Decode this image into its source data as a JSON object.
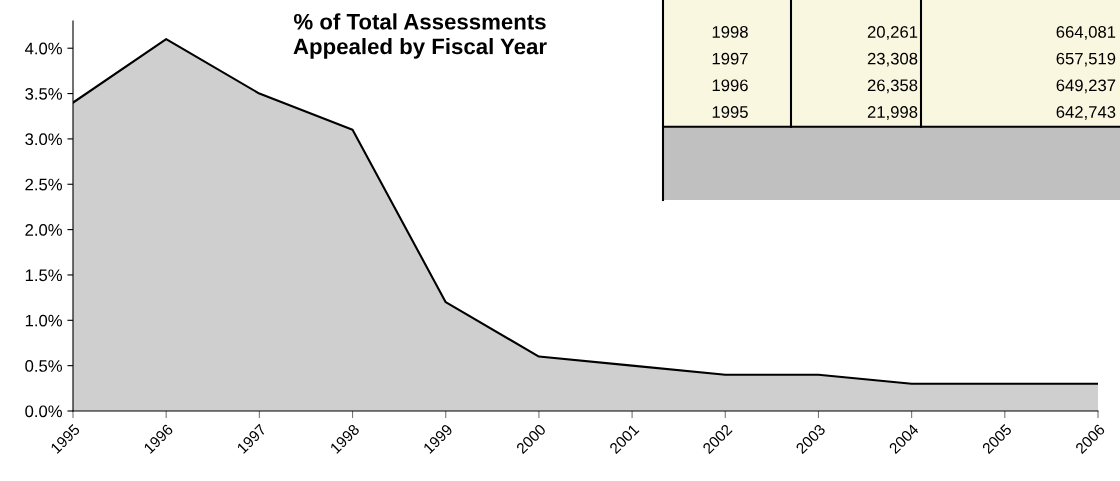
{
  "chart_data": {
    "type": "area",
    "title": "% of Total Assessments\nAppealed by Fiscal Year",
    "x": [
      1995,
      1996,
      1997,
      1998,
      1999,
      2000,
      2001,
      2002,
      2003,
      2004,
      2005,
      2006
    ],
    "series": [
      {
        "color": "#cfcfcf",
        "values": [
          3.4,
          4.1,
          3.5,
          3.1,
          1.2,
          0.6,
          0.5,
          0.4,
          0.4,
          0.3,
          0.3,
          0.3
        ]
      }
    ],
    "xlim": [
      1995,
      2006
    ],
    "xticks": [
      1995,
      1996,
      1997,
      1998,
      1999,
      2000,
      2001,
      2002,
      2003,
      2004,
      2005,
      2006
    ],
    "ylim": [
      0,
      4.3
    ],
    "yticks": [
      {
        "value": 0,
        "label": "0.0%"
      },
      {
        "value": 0.5,
        "label": "0.5%"
      },
      {
        "value": 1.0,
        "label": "1.0%"
      },
      {
        "value": 1.5,
        "label": "1.5%"
      },
      {
        "value": 2.0,
        "label": "2.0%"
      },
      {
        "value": 2.5,
        "label": "2.5%"
      },
      {
        "value": 3.0,
        "label": "3.0%"
      },
      {
        "value": 3.5,
        "label": "3.5%"
      },
      {
        "value": 4.0,
        "label": "4.0%"
      }
    ],
    "grid": false,
    "marker": "none",
    "line_style": "solid",
    "annotations": [
      "1998",
      "20,261",
      "664,081",
      "1997",
      "23,308",
      "657,519",
      "1996",
      "26,358",
      "649,237",
      "1995",
      "21,998",
      "642,743"
    ]
  }
}
